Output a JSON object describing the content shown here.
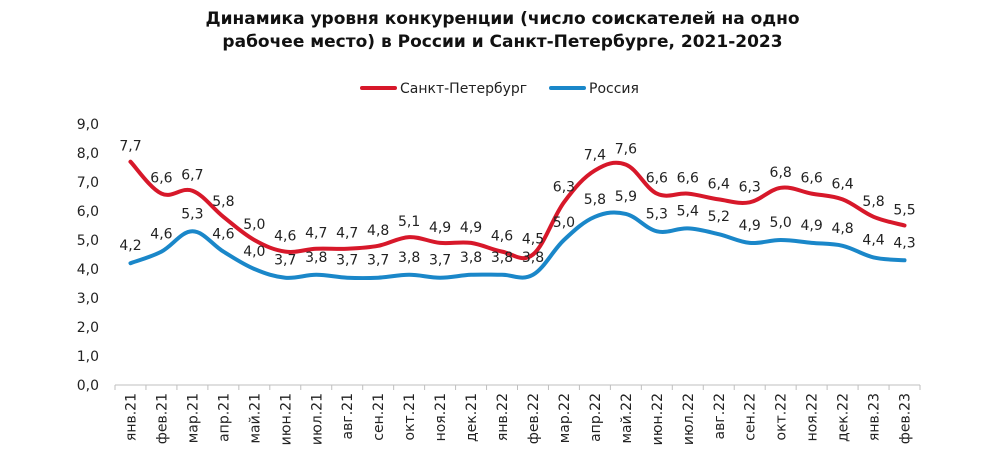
{
  "chart_data": {
    "type": "line",
    "title_lines": [
      "Динамика уровня конкуренции (число соискателей на одно",
      "рабочее место) в России и Санкт-Петербурге, 2021-2023"
    ],
    "categories": [
      "янв.21",
      "фев.21",
      "мар.21",
      "апр.21",
      "май.21",
      "июн.21",
      "июл.21",
      "авг.21",
      "сен.21",
      "окт.21",
      "ноя.21",
      "дек.21",
      "янв.22",
      "фев.22",
      "мар.22",
      "апр.22",
      "май.22",
      "июн.22",
      "июл.22",
      "авг.22",
      "сен.22",
      "окт.22",
      "ноя.22",
      "дек.22",
      "янв.23",
      "фев.23"
    ],
    "series": [
      {
        "name": "Санкт-Петербург",
        "color": "#d7182a",
        "values": [
          7.7,
          6.6,
          6.7,
          5.8,
          5.0,
          4.6,
          4.7,
          4.7,
          4.8,
          5.1,
          4.9,
          4.9,
          4.6,
          4.5,
          6.3,
          7.4,
          7.6,
          6.6,
          6.6,
          6.4,
          6.3,
          6.8,
          6.6,
          6.4,
          5.8,
          5.5
        ],
        "labels": [
          "7,7",
          "6,6",
          "6,7",
          "5,8",
          "5,0",
          "4,6",
          "4,7",
          "4,7",
          "4,8",
          "5,1",
          "4,9",
          "4,9",
          "4,6",
          "4,5",
          "6,3",
          "7,4",
          "7,6",
          "6,6",
          "6,6",
          "6,4",
          "6,3",
          "6,8",
          "6,6",
          "6,4",
          "5,8",
          "5,5"
        ]
      },
      {
        "name": "Россия",
        "color": "#1a87c9",
        "values": [
          4.2,
          4.6,
          5.3,
          4.6,
          4.0,
          3.7,
          3.8,
          3.7,
          3.7,
          3.8,
          3.7,
          3.8,
          3.8,
          3.8,
          5.0,
          5.8,
          5.9,
          5.3,
          5.4,
          5.2,
          4.9,
          5.0,
          4.9,
          4.8,
          4.4,
          4.3
        ],
        "labels": [
          "4,2",
          "4,6",
          "5,3",
          "4,6",
          "4,0",
          "3,7",
          "3,8",
          "3,7",
          "3,7",
          "3,8",
          "3,7",
          "3,8",
          "3,8",
          "3,8",
          "5,0",
          "5,8",
          "5,9",
          "5,3",
          "5,4",
          "5,2",
          "4,9",
          "5,0",
          "4,9",
          "4,8",
          "4,4",
          "4,3"
        ]
      }
    ],
    "yticks": [
      "0,0",
      "1,0",
      "2,0",
      "3,0",
      "4,0",
      "5,0",
      "6,0",
      "7,0",
      "8,0",
      "9,0"
    ],
    "ylim": [
      0,
      9
    ],
    "grid": false,
    "legend_position": "top-center"
  }
}
